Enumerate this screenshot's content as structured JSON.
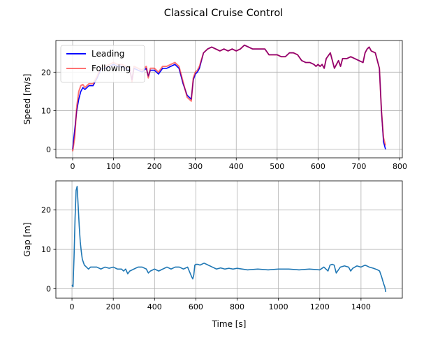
{
  "figure": {
    "title": "Classical Cruise Control"
  },
  "chart_data": [
    {
      "type": "line",
      "title": "",
      "xlabel": "",
      "ylabel": "Speed [m/s]",
      "xlim": [
        -41,
        806
      ],
      "ylim": [
        -2.2,
        28.2
      ],
      "xticks": [
        0,
        100,
        200,
        300,
        400,
        500,
        600,
        700,
        800
      ],
      "yticks": [
        0,
        10,
        20
      ],
      "grid": true,
      "legend": {
        "position": "upper-left"
      },
      "series": [
        {
          "name": "Leading",
          "color": "#0000ff",
          "alpha": 1.0,
          "x": [
            0,
            5,
            10,
            15,
            20,
            25,
            30,
            35,
            40,
            50,
            60,
            70,
            80,
            90,
            100,
            110,
            120,
            130,
            140,
            145,
            150,
            160,
            170,
            180,
            185,
            190,
            200,
            210,
            220,
            230,
            240,
            250,
            260,
            265,
            270,
            280,
            290,
            295,
            300,
            305,
            310,
            320,
            330,
            340,
            350,
            360,
            370,
            380,
            390,
            400,
            410,
            420,
            430,
            440,
            450,
            460,
            470,
            480,
            490,
            500,
            510,
            520,
            530,
            540,
            550,
            560,
            570,
            580,
            590,
            595,
            600,
            605,
            610,
            615,
            620,
            630,
            640,
            645,
            650,
            655,
            660,
            670,
            680,
            690,
            700,
            710,
            715,
            720,
            725,
            730,
            740,
            750,
            755,
            760,
            765
          ],
          "y": [
            0,
            5,
            10,
            13,
            15,
            16,
            15.5,
            16,
            16.5,
            16.5,
            18.5,
            21,
            21,
            21.5,
            22,
            21.5,
            21.5,
            21,
            20.5,
            18,
            21,
            20.5,
            20,
            21,
            19,
            20.5,
            20.5,
            19.5,
            21,
            21,
            21.5,
            22,
            21,
            19,
            17,
            14,
            13,
            18,
            19.5,
            20,
            21,
            25,
            26,
            26.5,
            26,
            25.5,
            26,
            25.5,
            26,
            25.5,
            26,
            27,
            26.5,
            26,
            26,
            26,
            26,
            24.5,
            24.5,
            24.5,
            24,
            24,
            25,
            25,
            24.5,
            23,
            22.5,
            22.5,
            22,
            21.5,
            22,
            21.5,
            22,
            21,
            23.5,
            25,
            21,
            22,
            23,
            21.5,
            23.5,
            23.5,
            24,
            23.5,
            23,
            22.5,
            25,
            26,
            26.5,
            25.5,
            25,
            21,
            10,
            2,
            0
          ]
        },
        {
          "name": "Following",
          "color": "#ff0000",
          "alpha": 0.55,
          "x": [
            0,
            5,
            10,
            15,
            20,
            25,
            30,
            35,
            40,
            50,
            60,
            70,
            80,
            90,
            100,
            110,
            120,
            130,
            140,
            145,
            150,
            160,
            170,
            180,
            185,
            190,
            200,
            210,
            220,
            230,
            240,
            250,
            260,
            265,
            270,
            280,
            290,
            295,
            300,
            305,
            310,
            320,
            330,
            340,
            350,
            360,
            370,
            380,
            390,
            400,
            410,
            420,
            430,
            440,
            450,
            460,
            470,
            480,
            490,
            500,
            510,
            520,
            530,
            540,
            550,
            560,
            570,
            580,
            590,
            595,
            600,
            605,
            610,
            615,
            620,
            630,
            640,
            645,
            650,
            655,
            660,
            670,
            680,
            690,
            700,
            710,
            715,
            720,
            725,
            730,
            740,
            750,
            755,
            760,
            765
          ],
          "y": [
            -0.5,
            3,
            11,
            15,
            16.5,
            16.8,
            16,
            16.5,
            17,
            17,
            19,
            21.5,
            21.5,
            22,
            22.5,
            22,
            22,
            21.5,
            21,
            17.5,
            21.5,
            21,
            20.5,
            21.5,
            18.5,
            21,
            21,
            20,
            21.5,
            21.5,
            22,
            22.5,
            21.5,
            19.5,
            17.5,
            13.5,
            12.5,
            18.5,
            20,
            20.5,
            21.5,
            25,
            26,
            26.5,
            26,
            25.5,
            26,
            25.5,
            26,
            25.5,
            26,
            27,
            26.5,
            26,
            26,
            26,
            26,
            24.5,
            24.5,
            24.5,
            24,
            24,
            25,
            25,
            24.5,
            23,
            22.5,
            22.5,
            22,
            21.5,
            22,
            21.5,
            22,
            21,
            23.5,
            25,
            21,
            22,
            23,
            21.5,
            23.5,
            23.5,
            24,
            23.5,
            23,
            22.5,
            25,
            26,
            26.5,
            25.5,
            25,
            21,
            10,
            3,
            1
          ]
        }
      ]
    },
    {
      "type": "line",
      "title": "",
      "xlabel": "Time [s]",
      "ylabel": "Gap [m]",
      "xlim": [
        -78,
        1600
      ],
      "ylim": [
        -2.4,
        27.4
      ],
      "xticks": [
        0,
        200,
        400,
        600,
        800,
        1000,
        1200,
        1400
      ],
      "yticks": [
        0,
        10,
        20
      ],
      "grid": true,
      "series": [
        {
          "color": "#1f77b4",
          "x": [
            0,
            5,
            10,
            15,
            20,
            25,
            30,
            35,
            40,
            45,
            50,
            60,
            70,
            80,
            90,
            100,
            120,
            140,
            160,
            180,
            200,
            220,
            240,
            250,
            260,
            270,
            280,
            300,
            320,
            340,
            360,
            370,
            380,
            400,
            420,
            440,
            460,
            480,
            500,
            520,
            540,
            560,
            580,
            585,
            590,
            595,
            600,
            610,
            620,
            640,
            660,
            680,
            700,
            720,
            740,
            760,
            780,
            800,
            850,
            900,
            950,
            1000,
            1050,
            1100,
            1150,
            1200,
            1220,
            1240,
            1250,
            1260,
            1270,
            1280,
            1300,
            1320,
            1340,
            1350,
            1360,
            1380,
            1400,
            1420,
            1440,
            1460,
            1480,
            1490,
            1500,
            1510,
            1515,
            1520
          ],
          "y": [
            1,
            0.5,
            8,
            18,
            25,
            26,
            21,
            16,
            12,
            9.5,
            7.5,
            6,
            5.5,
            5,
            5.5,
            5.5,
            5.5,
            5,
            5.5,
            5.2,
            5.5,
            5,
            5,
            4.5,
            5,
            3.8,
            4.5,
            5,
            5.5,
            5.5,
            5,
            4,
            4.5,
            5,
            4.5,
            5,
            5.5,
            5,
            5.5,
            5.5,
            5,
            5.5,
            3,
            2.5,
            3.5,
            6,
            6.2,
            6.2,
            6,
            6.5,
            6,
            5.5,
            5,
            5.3,
            5,
            5.2,
            5,
            5.2,
            4.8,
            5,
            4.8,
            5,
            5,
            4.8,
            5,
            4.8,
            5.5,
            4.5,
            6,
            6.2,
            6,
            4,
            5.5,
            5.8,
            5.5,
            4.5,
            5.2,
            5.8,
            5.5,
            6,
            5.5,
            5.2,
            4.8,
            4.5,
            3,
            1.2,
            0.5,
            -0.8
          ]
        }
      ]
    }
  ]
}
